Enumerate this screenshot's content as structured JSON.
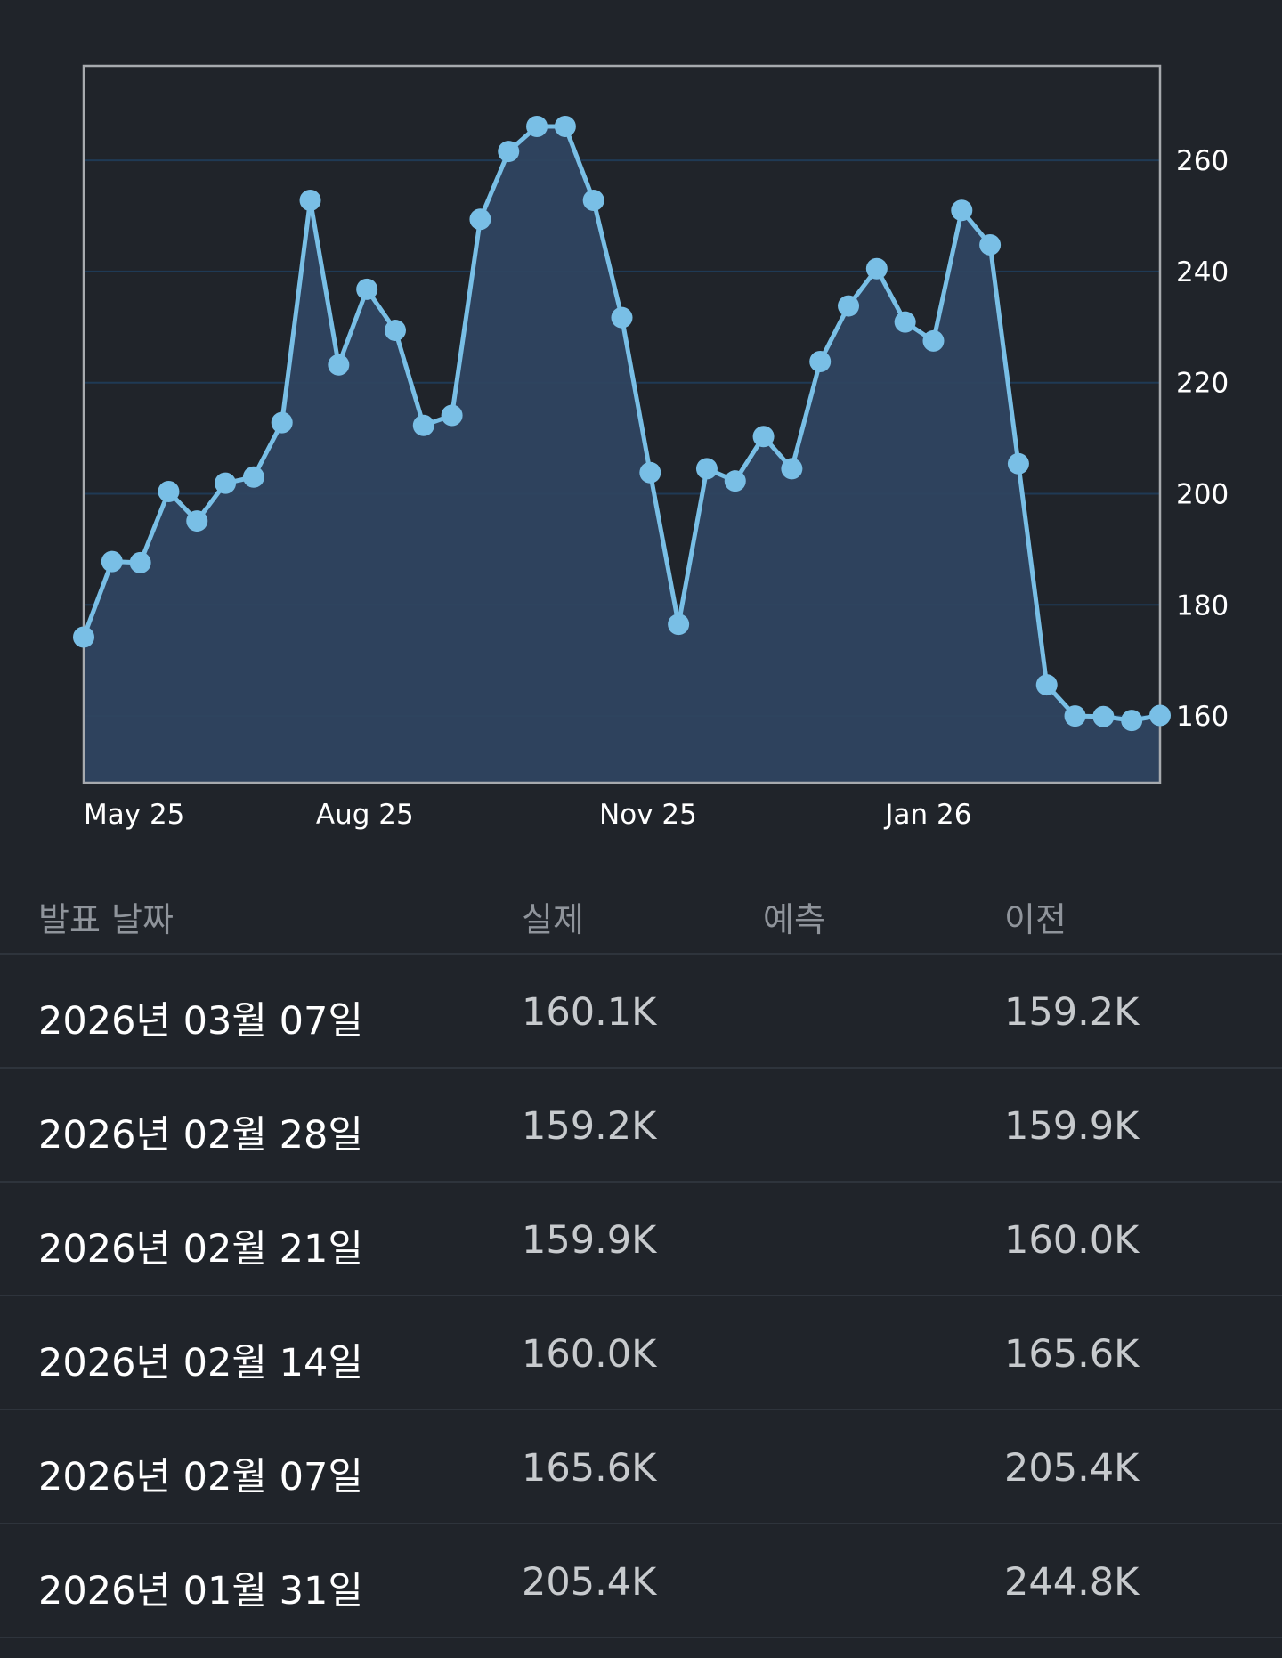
{
  "chart_data": {
    "type": "area",
    "x_tick_labels": [
      "May 25",
      "Aug 25",
      "Nov 25",
      "Jan 26"
    ],
    "y_tick_labels": [
      "160",
      "180",
      "200",
      "220",
      "240",
      "260"
    ],
    "ylim": [
      148,
      277
    ],
    "grid": true,
    "line_color": "#79bfe6",
    "fill_color": "#2f4560",
    "values": [
      174.2,
      187.8,
      187.6,
      200.4,
      195.1,
      201.9,
      203.0,
      212.8,
      252.8,
      223.2,
      236.8,
      229.4,
      212.3,
      214.1,
      249.4,
      261.6,
      266.1,
      266.1,
      252.8,
      231.7,
      203.8,
      176.5,
      204.5,
      202.3,
      210.3,
      204.5,
      223.8,
      233.8,
      240.5,
      230.9,
      227.5,
      251.0,
      244.8,
      205.4,
      165.6,
      160.0,
      159.9,
      159.2,
      160.1
    ]
  },
  "table": {
    "headers": {
      "date": "발표 날짜",
      "actual": "실제",
      "forecast": "예측",
      "previous": "이전"
    },
    "rows": [
      {
        "date": "2026년 03월 07일",
        "actual": "160.1K",
        "forecast": "",
        "previous": "159.2K"
      },
      {
        "date": "2026년 02월 28일",
        "actual": "159.2K",
        "forecast": "",
        "previous": "159.9K"
      },
      {
        "date": "2026년 02월 21일",
        "actual": "159.9K",
        "forecast": "",
        "previous": "160.0K"
      },
      {
        "date": "2026년 02월 14일",
        "actual": "160.0K",
        "forecast": "",
        "previous": "165.6K"
      },
      {
        "date": "2026년 02월 07일",
        "actual": "165.6K",
        "forecast": "",
        "previous": "205.4K"
      },
      {
        "date": "2026년 01월 31일",
        "actual": "205.4K",
        "forecast": "",
        "previous": "244.8K"
      }
    ]
  }
}
